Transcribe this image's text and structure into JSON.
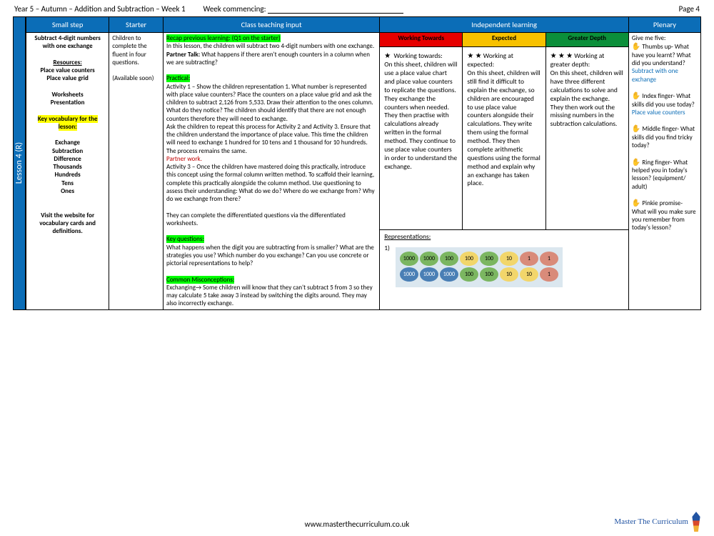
{
  "header": {
    "title_left": "Year 5 – Autumn – Addition and Subtraction – Week 1",
    "week_commencing_label": "Week commencing:",
    "page_label": "Page 4"
  },
  "lesson_tab": "Lesson 4 (R)",
  "columns": {
    "small_step": "Small step",
    "starter": "Starter",
    "class_input": "Class teaching input",
    "independent": "Independent learning",
    "plenary": "Plenary"
  },
  "small_step": {
    "title": "Subtract 4-digit numbers with one exchange",
    "resources_label": "Resources:",
    "resources": [
      "Place value counters",
      "Place value grid",
      "",
      "Worksheets",
      "Presentation"
    ],
    "vocab_label": "Key vocabulary for the lesson:",
    "vocab": [
      "Exchange",
      "Subtraction",
      "Difference",
      "Thousands",
      "Hundreds",
      "Tens",
      "Ones"
    ],
    "footnote": "Visit the website for vocabulary cards and definitions."
  },
  "starter": {
    "line1": "Children to complete the fluent in four questions.",
    "line2": "(Available soon)"
  },
  "class_input": {
    "recap_hl": "Recap previous learning: (Q1 on the starter)",
    "intro": "In this lesson, the children will subtract two 4-digit numbers with one exchange.",
    "partner_talk_label": "Partner Talk:",
    "partner_talk": " What happens if there aren't enough counters in a column when we are subtracting?",
    "practical_label": "Practical:",
    "act1": "Activity 1 – Show the children representation 1. What number is represented with place value counters? Place the counters on a place value grid and ask the children to subtract 2,126 from 5,533. Draw their attention to the ones column. What do they notice? The children should identify that there are not enough counters therefore they will need to exchange.",
    "act2": "Ask the children to repeat this process for Activity 2 and Activity 3. Ensure that the children understand the importance of place value. This time the children will need to exchange 1 hundred for 10 tens and 1 thousand for 10 hundreds. The process remains the same.",
    "partner_work": "Partner work.",
    "act3": "Activity 3 – Once the children have mastered doing this practically, introduce this concept using the formal column written method. To scaffold their learning, complete this practically alongside the column method. Use questioning to assess their understanding: What do we do? Where do we exchange from? Why do we exchange from there?",
    "diff": "They can complete the differentiated questions via the differentiated worksheets.",
    "kq_label": "Key questions:",
    "kq": "What happens when the digit you are subtracting from is smaller? What are the strategies you use? Which number do you exchange? Can you use concrete or pictorial representations to help?",
    "cm_label": "Common Misconceptions:",
    "cm": "Exchanging→ Some children will know that they can't subtract 5 from 3 so they may calculate 5 take away 3 instead by switching the digits around. They may also incorrectly exchange."
  },
  "independent": {
    "wt_label": "Working Towards",
    "ex_label": "Expected",
    "gd_label": "Greater Depth",
    "wt_lead": "Working towards:",
    "wt_body": "On this sheet, children will use a place value chart and place value counters to replicate the questions. They exchange the counters when needed. They then practise with calculations already written in the formal method. They continue to use place value counters in order to understand the exchange.",
    "ex_lead": "Working at expected:",
    "ex_body": "On this sheet, children will still find it difficult to explain the exchange, so children are encouraged to use place value counters alongside their calculations. They write them using the formal method. They then complete arithmetic questions using the formal method and explain why an exchange has taken place.",
    "gd_lead": "Working at greater depth:",
    "gd_body": "On this sheet, children will have three different calculations to solve and explain the exchange. They then work out the missing numbers in the subtraction calculations.",
    "rep_label": "Representations:",
    "rep_item": "1)",
    "chips_row1": [
      {
        "t": "1000",
        "c": "c1000"
      },
      {
        "t": "1000",
        "c": "c1000"
      },
      {
        "t": "100",
        "c": "c100g"
      },
      {
        "t": "100",
        "c": "c100"
      },
      {
        "t": "100",
        "c": "c100g"
      },
      {
        "t": "10",
        "c": "c10y"
      },
      {
        "t": "1",
        "c": "c1"
      },
      {
        "t": "1",
        "c": "c1"
      }
    ],
    "chips_row2": [
      {
        "t": "1000",
        "c": "c1000b"
      },
      {
        "t": "1000",
        "c": "c1000b"
      },
      {
        "t": "1000",
        "c": "c1000b"
      },
      {
        "t": "100",
        "c": "c100g"
      },
      {
        "t": "100",
        "c": "c100g"
      },
      {
        "t": "10",
        "c": "c10y"
      },
      {
        "t": "10",
        "c": "c10y"
      },
      {
        "t": "1",
        "c": "c1"
      }
    ]
  },
  "plenary": {
    "intro": "Give me five:",
    "thumb_label": "Thumbs up-",
    "thumb_q": "What have you learnt? What did you understand?",
    "thumb_ans": "Subtract with one exchange",
    "index_label": "Index finger-",
    "index_q": "What skills did you use today?",
    "index_ans": "Place value counters",
    "middle_label": "Middle finger-",
    "middle_q": "What skills did you find tricky today?",
    "ring_label": "Ring finger-",
    "ring_q": "What helped you in today's lesson? (equipment/ adult)",
    "pinkie_label": "Pinkie promise-",
    "pinkie_q": "What will you make sure you remember from today's lesson?"
  },
  "footer": {
    "url": "www.masterthecurriculum.co.uk",
    "brand": "Master The Curriculum"
  }
}
